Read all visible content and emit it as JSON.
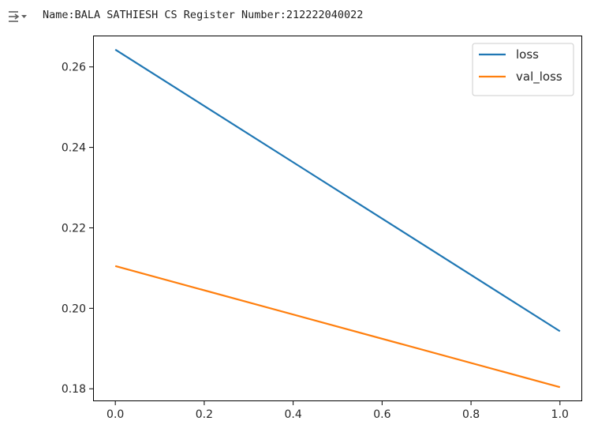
{
  "cell_output": {
    "text": "Name:BALA SATHIESH CS Register Number:212222040022",
    "icon": "output-collapse-icon"
  },
  "chart_data": {
    "type": "line",
    "x": [
      0.0,
      1.0
    ],
    "series": [
      {
        "name": "loss",
        "values": [
          0.2643,
          0.1943
        ],
        "color": "#1f77b4"
      },
      {
        "name": "val_loss",
        "values": [
          0.2105,
          0.1804
        ],
        "color": "#ff7f0e"
      }
    ],
    "xticks": [
      0.0,
      0.2,
      0.4,
      0.6,
      0.8,
      1.0
    ],
    "xtick_labels": [
      "0.0",
      "0.2",
      "0.4",
      "0.6",
      "0.8",
      "1.0"
    ],
    "yticks": [
      0.18,
      0.2,
      0.22,
      0.24,
      0.26
    ],
    "ytick_labels": [
      "0.18",
      "0.20",
      "0.22",
      "0.24",
      "0.26"
    ],
    "xlim": [
      -0.05,
      1.05
    ],
    "ylim": [
      0.1769,
      0.2678
    ],
    "grid": false,
    "legend": "top-right"
  }
}
